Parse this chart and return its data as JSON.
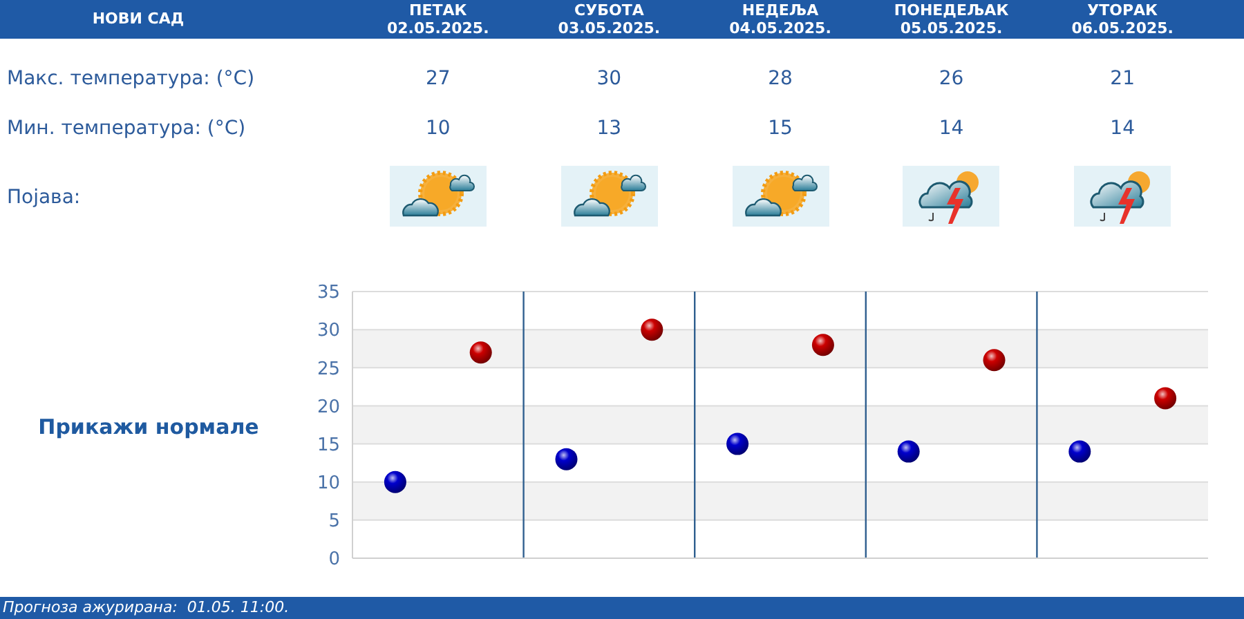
{
  "chart_data": {
    "type": "scatter",
    "title": "НОВИ САД",
    "categories": [
      null,
      null,
      null,
      null,
      null
    ],
    "series": [
      {
        "color": "#cc0000",
        "values": [
          27,
          30,
          28,
          26,
          21
        ]
      },
      {
        "color": "#0000cc",
        "values": [
          10,
          13,
          15,
          14,
          14
        ]
      }
    ],
    "ylim": [
      0,
      35
    ],
    "yticks": [
      0,
      5,
      10,
      15,
      20,
      25,
      30,
      35
    ],
    "grid": true,
    "marker": "circle",
    "data_labels": true,
    "annotations": [
      "ПЕТАК\n02.05.2025.",
      "СУБОТА\n03.05.2025.",
      "НЕДЕЉА\n04.05.2025.",
      "ПОНЕДЕЉАК\n05.05.2025.",
      "УТОРАК\n06.05.2025.",
      "Макс. температура: (°C)",
      "Мин. температура: (°C)",
      "Појава:",
      "Прикажи нормале",
      "Прогноза ажурирана:  01.05. 11:00."
    ]
  }
}
